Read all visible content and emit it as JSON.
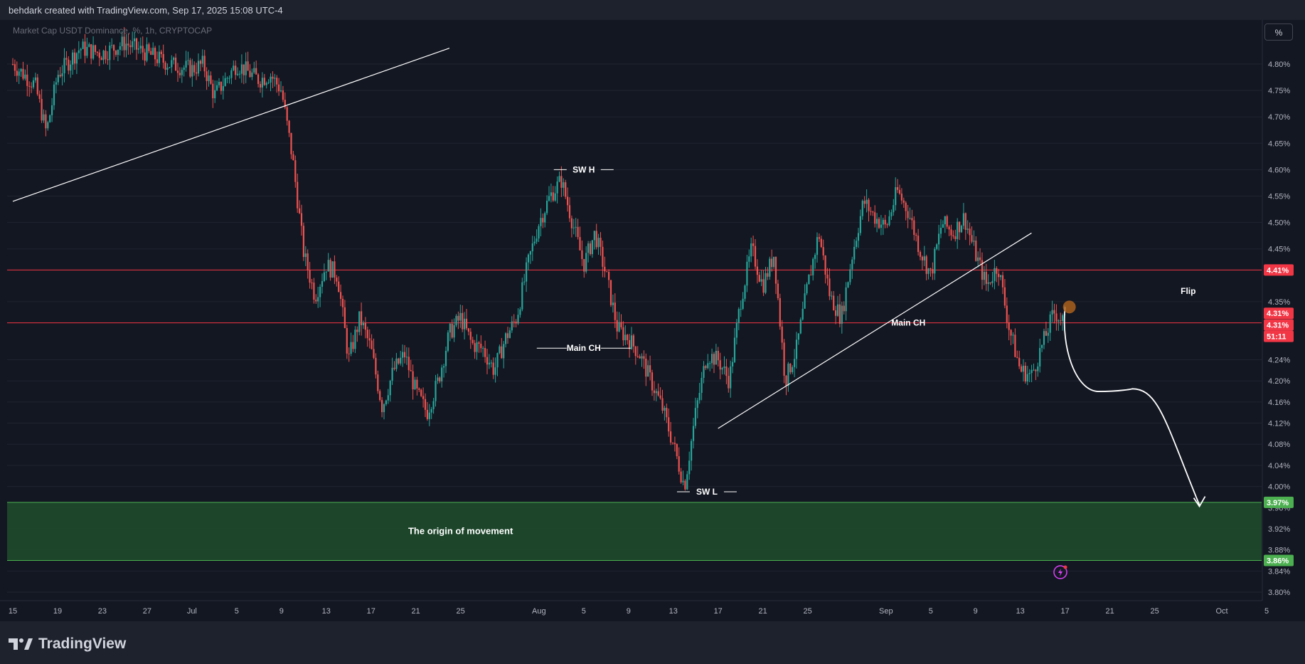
{
  "header": {
    "attribution": "behdark created with TradingView.com, Sep 17, 2025 15:08 UTC-4"
  },
  "symbol": {
    "label": "Market Cap USDT Dominance, %, 1h, CRYPTOCAP"
  },
  "scale_button": {
    "label": "%"
  },
  "footer": {
    "brand": "TradingView"
  },
  "colors": {
    "background": "#131722",
    "up": "#26a69a",
    "down": "#ef5350",
    "grid": "#1f2430",
    "resistance": "#f23645",
    "support_zone": "#1e4d2b",
    "support_line": "#4caf50",
    "annotation": "#ffffff"
  },
  "chart_data": {
    "type": "candlestick",
    "title": "",
    "ylabel": "",
    "xlabel": "",
    "grid": true,
    "ylim": [
      3.78,
      4.87
    ],
    "y_ticks": [
      "4.80%",
      "4.75%",
      "4.70%",
      "4.65%",
      "4.60%",
      "4.55%",
      "4.50%",
      "4.45%",
      "4.35%",
      "4.24%",
      "4.20%",
      "4.16%",
      "4.12%",
      "4.08%",
      "4.04%",
      "4.00%",
      "3.96%",
      "3.92%",
      "3.88%",
      "3.84%",
      "3.80%"
    ],
    "x_ticks": [
      "15",
      "19",
      "23",
      "27",
      "Jul",
      "5",
      "9",
      "13",
      "17",
      "21",
      "25",
      "Aug",
      "5",
      "9",
      "13",
      "17",
      "21",
      "25",
      "Sep",
      "5",
      "9",
      "13",
      "17",
      "21",
      "25",
      "Oct",
      "5"
    ],
    "x_range_days": [
      "2025-06-15",
      "2025-10-05"
    ],
    "price_path": [
      [
        "2025-06-15",
        4.8
      ],
      [
        "2025-06-17",
        4.76
      ],
      [
        "2025-06-18",
        4.67
      ],
      [
        "2025-06-19",
        4.78
      ],
      [
        "2025-06-21",
        4.83
      ],
      [
        "2025-06-23",
        4.82
      ],
      [
        "2025-06-25",
        4.84
      ],
      [
        "2025-06-27",
        4.82
      ],
      [
        "2025-06-29",
        4.8
      ],
      [
        "2025-07-01",
        4.79
      ],
      [
        "2025-07-02",
        4.8
      ],
      [
        "2025-07-03",
        4.74
      ],
      [
        "2025-07-05",
        4.8
      ],
      [
        "2025-07-07",
        4.77
      ],
      [
        "2025-07-08",
        4.78
      ],
      [
        "2025-07-09",
        4.75
      ],
      [
        "2025-07-10",
        4.62
      ],
      [
        "2025-07-11",
        4.44
      ],
      [
        "2025-07-12",
        4.36
      ],
      [
        "2025-07-13",
        4.42
      ],
      [
        "2025-07-14",
        4.4
      ],
      [
        "2025-07-15",
        4.24
      ],
      [
        "2025-07-16",
        4.32
      ],
      [
        "2025-07-17",
        4.26
      ],
      [
        "2025-07-18",
        4.15
      ],
      [
        "2025-07-19",
        4.22
      ],
      [
        "2025-07-20",
        4.25
      ],
      [
        "2025-07-21",
        4.18
      ],
      [
        "2025-07-22",
        4.14
      ],
      [
        "2025-07-23",
        4.2
      ],
      [
        "2025-07-24",
        4.29
      ],
      [
        "2025-07-25",
        4.32
      ],
      [
        "2025-07-26",
        4.27
      ],
      [
        "2025-07-27",
        4.26
      ],
      [
        "2025-07-28",
        4.22
      ],
      [
        "2025-07-29",
        4.28
      ],
      [
        "2025-07-30",
        4.32
      ],
      [
        "2025-07-31",
        4.42
      ],
      [
        "2025-08-01",
        4.5
      ],
      [
        "2025-08-02",
        4.55
      ],
      [
        "2025-08-03",
        4.58
      ],
      [
        "2025-08-04",
        4.5
      ],
      [
        "2025-08-05",
        4.42
      ],
      [
        "2025-08-06",
        4.48
      ],
      [
        "2025-08-07",
        4.4
      ],
      [
        "2025-08-08",
        4.3
      ],
      [
        "2025-08-09",
        4.28
      ],
      [
        "2025-08-10",
        4.25
      ],
      [
        "2025-08-11",
        4.2
      ],
      [
        "2025-08-12",
        4.15
      ],
      [
        "2025-08-13",
        4.08
      ],
      [
        "2025-08-14",
        4.0
      ],
      [
        "2025-08-15",
        4.14
      ],
      [
        "2025-08-16",
        4.25
      ],
      [
        "2025-08-17",
        4.24
      ],
      [
        "2025-08-18",
        4.2
      ],
      [
        "2025-08-19",
        4.35
      ],
      [
        "2025-08-20",
        4.45
      ],
      [
        "2025-08-21",
        4.38
      ],
      [
        "2025-08-22",
        4.44
      ],
      [
        "2025-08-23",
        4.2
      ],
      [
        "2025-08-24",
        4.26
      ],
      [
        "2025-08-25",
        4.38
      ],
      [
        "2025-08-26",
        4.48
      ],
      [
        "2025-08-27",
        4.36
      ],
      [
        "2025-08-28",
        4.32
      ],
      [
        "2025-08-29",
        4.44
      ],
      [
        "2025-08-30",
        4.54
      ],
      [
        "2025-08-31",
        4.51
      ],
      [
        "2025-09-01",
        4.49
      ],
      [
        "2025-09-02",
        4.56
      ],
      [
        "2025-09-03",
        4.52
      ],
      [
        "2025-09-04",
        4.45
      ],
      [
        "2025-09-05",
        4.4
      ],
      [
        "2025-09-06",
        4.5
      ],
      [
        "2025-09-07",
        4.48
      ],
      [
        "2025-09-08",
        4.51
      ],
      [
        "2025-09-09",
        4.44
      ],
      [
        "2025-09-10",
        4.38
      ],
      [
        "2025-09-11",
        4.42
      ],
      [
        "2025-09-12",
        4.3
      ],
      [
        "2025-09-13",
        4.22
      ],
      [
        "2025-09-14",
        4.21
      ],
      [
        "2025-09-15",
        4.27
      ],
      [
        "2025-09-16",
        4.33
      ],
      [
        "2025-09-17",
        4.31
      ]
    ],
    "last_price": 4.31,
    "levels": [
      {
        "name": "resistance",
        "value": 4.41,
        "label": "4.41%"
      },
      {
        "name": "current",
        "value": 4.31,
        "label": "4.31%"
      }
    ],
    "last_price_tags": [
      "4.31%",
      "51:11"
    ],
    "support_zone": {
      "top": 3.97,
      "bottom": 3.86,
      "top_label": "3.97%",
      "bottom_label": "3.86%"
    },
    "annotations": [
      {
        "text": "SW H",
        "date": "2025-08-05",
        "value": 4.6
      },
      {
        "text": "SW L",
        "date": "2025-08-16",
        "value": 3.99
      },
      {
        "text": "Main CH",
        "date": "2025-08-05",
        "value": 4.262
      },
      {
        "text": "Main CH",
        "date": "2025-09-03",
        "value": 4.31
      },
      {
        "text": "Flip",
        "date": "2025-09-28",
        "value": 4.37
      },
      {
        "text": "The origin of movement",
        "date": "2025-07-25",
        "value": 3.915
      }
    ],
    "trendlines": [
      {
        "start": [
          "2025-06-15",
          4.54
        ],
        "end": [
          "2025-07-24",
          4.83
        ]
      },
      {
        "start": [
          "2025-08-17",
          4.11
        ],
        "end": [
          "2025-09-14",
          4.48
        ]
      }
    ],
    "projection_path": [
      [
        "2025-09-17",
        4.34
      ],
      [
        "2025-09-18",
        4.26
      ],
      [
        "2025-09-20",
        4.18
      ],
      [
        "2025-09-23",
        4.185
      ],
      [
        "2025-09-26",
        4.12
      ],
      [
        "2025-09-29",
        3.965
      ]
    ]
  }
}
